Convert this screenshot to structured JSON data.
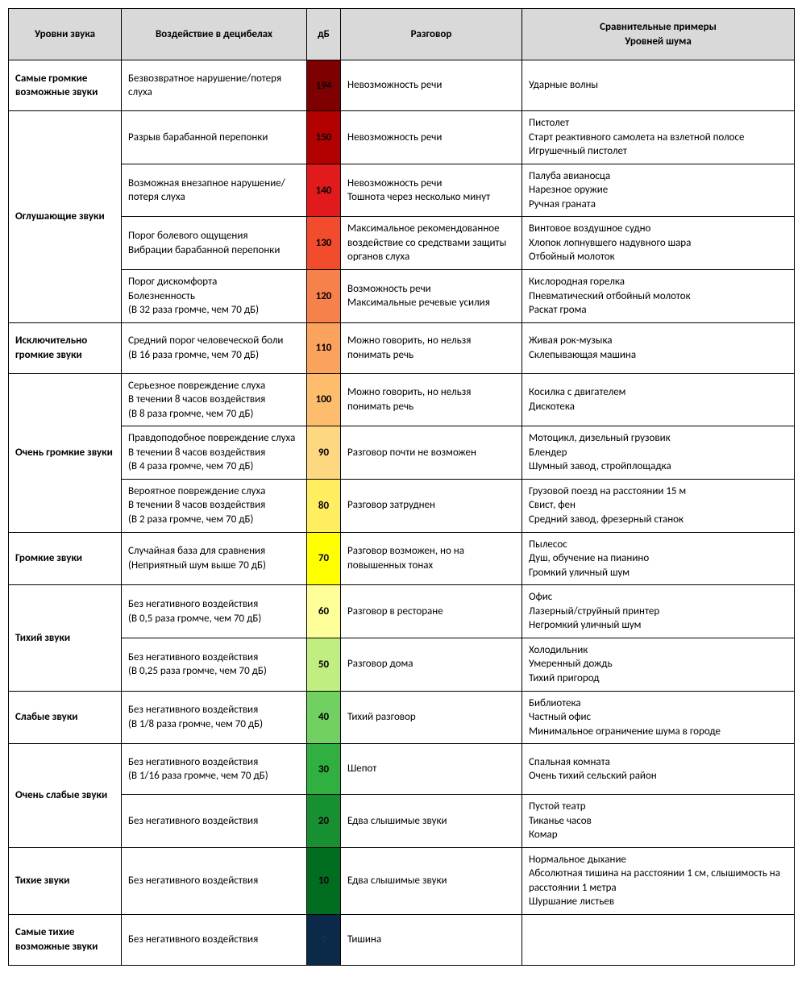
{
  "headers": {
    "level": "Уровни звука",
    "effect": "Воздействие в децибелах",
    "db": "дБ",
    "conversation": "Разговор",
    "examples": "Сравнительные примеры\nУровней шума"
  },
  "db_text_dark": "#000000",
  "db_text_darker": "#102030",
  "groups": [
    {
      "level": "Самые громкие возможные звуки",
      "rows": [
        {
          "effect": "Безвозвратное нарушение/потеря слуха",
          "db": "194",
          "db_bg": "#7f0000",
          "db_fg": "#000000",
          "conversation": "Невозможность речи",
          "examples": "Ударные волны"
        }
      ]
    },
    {
      "level": "Оглушающие звуки",
      "rows": [
        {
          "effect": "Разрыв барабанной перепонки",
          "db": "150",
          "db_bg": "#b30000",
          "db_fg": "#000000",
          "conversation": "Невозможность речи",
          "examples": "Пистолет\nСтарт реактивного самолета на взлетной полосе\nИгрушечный пистолет"
        },
        {
          "effect": "Возможная внезапное нарушение/потеря слуха",
          "db": "140",
          "db_bg": "#e31a1c",
          "db_fg": "#000000",
          "conversation": "Невозможность речи\nТошнота через несколько минут",
          "examples": "Палуба авианосца\nНарезное оружие\nРучная граната"
        },
        {
          "effect": "Порог болевого ощущения\nВибрации барабанной перепонки",
          "db": "130",
          "db_bg": "#f34c2c",
          "db_fg": "#000000",
          "conversation": "Максимальное рекомендованное воздействие со средствами защиты органов слуха",
          "examples": "Винтовое воздушное судно\nХлопок лопнувшего надувного шара\nОтбойный молоток"
        },
        {
          "effect": "Порог дискомфорта\nБолезненность\n(В 32 раза громче, чем 70 дБ)",
          "db": "120",
          "db_bg": "#f7814b",
          "db_fg": "#000000",
          "conversation": "Возможность речи\nМаксимальные речевые усилия",
          "examples": "Кислородная горелка\nПневматический отбойный молоток\nРаскат грома"
        }
      ]
    },
    {
      "level": "Исключительно громкие звуки",
      "rows": [
        {
          "effect": "Средний порог человеческой боли\n(В 16 раза громче, чем 70 дБ)",
          "db": "110",
          "db_bg": "#fba35c",
          "db_fg": "#000000",
          "conversation": "Можно говорить, но нельзя понимать речь",
          "examples": "Живая рок-музыка\nСклепывающая машина"
        }
      ]
    },
    {
      "level": "Очень громкие звуки",
      "rows": [
        {
          "effect": "Серьезное повреждение слуха\nВ течении 8 часов воздействия\n(В 8 раза громче, чем 70 дБ)",
          "db": "100",
          "db_bg": "#fdbd6d",
          "db_fg": "#000000",
          "conversation": "Можно говорить, но нельзя понимать речь",
          "examples": "Косилка с двигателем\nДискотека"
        },
        {
          "effect": "Правдоподобное повреждение слуха\nВ течении 8 часов воздействия\n(В 4 раза громче, чем 70 дБ)",
          "db": "90",
          "db_bg": "#fed880",
          "db_fg": "#000000",
          "conversation": "Разговор почти не возможен",
          "examples": "Мотоцикл, дизельный грузовик\nБлендер\nШумный завод, стройплощадка"
        },
        {
          "effect": "Вероятное повреждение слуха\nВ течении 8 часов воздействия\n(В 2 раза громче, чем 70 дБ)",
          "db": "80",
          "db_bg": "#ffee60",
          "db_fg": "#000000",
          "conversation": "Разговор затруднен",
          "examples": "Грузовой поезд на расстоянии 15 м\nСвист, фен\nСредний завод, фрезерный станок"
        }
      ]
    },
    {
      "level": "Громкие звуки",
      "rows": [
        {
          "effect": "Случайная база для сравнения\n(Неприятный шум выше 70 дБ)",
          "db": "70",
          "db_bg": "#ffff00",
          "db_fg": "#000000",
          "conversation": "Разговор возможен, но на повышенных тонах",
          "examples": "Пылесос\nДуш, обучение на пианино\nГромкий уличный шум"
        }
      ]
    },
    {
      "level": "Тихий звуки",
      "rows": [
        {
          "effect": "Без негативного воздействия\n(В 0,5 раза громче, чем 70 дБ)",
          "db": "60",
          "db_bg": "#ffff99",
          "db_fg": "#000000",
          "conversation": "Разговор в ресторане",
          "examples": "Офис\nЛазерный/струйный принтер\nНегромкий уличный шум"
        },
        {
          "effect": "Без негативного воздействия\n(В 0,25 раза громче, чем 70 дБ)",
          "db": "50",
          "db_bg": "#c0ee80",
          "db_fg": "#000000",
          "conversation": "Разговор дома",
          "examples": "Холодильник\nУмеренный дождь\nТихий пригород"
        }
      ]
    },
    {
      "level": "Слабые звуки",
      "rows": [
        {
          "effect": "Без негативного воздействия\n(В 1/8 раза громче, чем 70 дБ)",
          "db": "40",
          "db_bg": "#70d060",
          "db_fg": "#000000",
          "conversation": "Тихий разговор",
          "examples": "Библиотека\nЧастный офис\nМинимальное ограничение шума в городе"
        }
      ]
    },
    {
      "level": "Очень слабые звуки",
      "rows": [
        {
          "effect": "Без негативного воздействия\n(В 1/16 раза громче, чем 70 дБ)",
          "db": "30",
          "db_bg": "#30b040",
          "db_fg": "#000000",
          "conversation": "Шепот",
          "examples": "Спальная комната\nОчень тихий сельский район"
        },
        {
          "effect": "Без негативного воздействия",
          "db": "20",
          "db_bg": "#169030",
          "db_fg": "#000000",
          "conversation": "Едва слышимые звуки",
          "examples": "Пустой театр\nТиканье часов\nКомар"
        }
      ]
    },
    {
      "level": "Тихие звуки",
      "rows": [
        {
          "effect": "Без негативного воздействия",
          "db": "10",
          "db_bg": "#006d20",
          "db_fg": "#000000",
          "conversation": "Едва слышимые звуки",
          "examples": "Нормальное дыхание\nАбсолютная тишина на расстоянии 1 см, слышимость на расстоянии 1 метра\nШуршание листьев"
        }
      ]
    },
    {
      "level": "Самые тихие возможные звуки",
      "rows": [
        {
          "effect": "Без негативного воздействия",
          "db": "0",
          "db_bg": "#0b2a4a",
          "db_fg": "#183050",
          "conversation": "Тишина",
          "examples": ""
        }
      ]
    }
  ]
}
